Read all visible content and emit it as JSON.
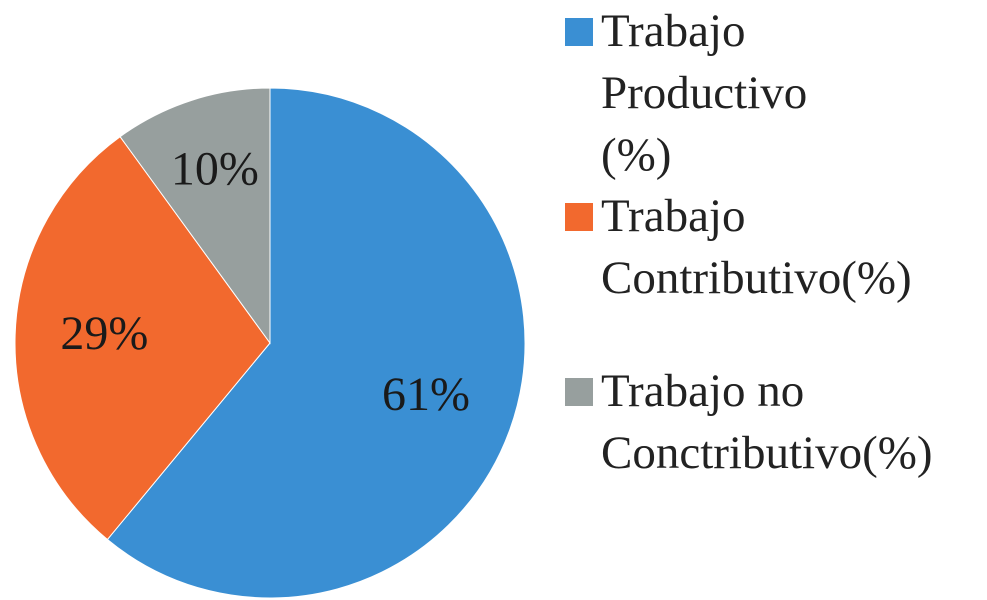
{
  "chart_data": {
    "type": "pie",
    "series": [
      {
        "name": "Trabajo Productivo (%)",
        "color": "#3a8fd3",
        "values": [
          61
        ],
        "value_labels": [
          "61%"
        ]
      },
      {
        "name": "Trabajo Contributivo(%)",
        "color": "#f2692e",
        "values": [
          29
        ],
        "value_labels": [
          "29%"
        ]
      },
      {
        "name": "Trabajo no Conctributivo(%)",
        "color": "#979f9e",
        "values": [
          10
        ],
        "value_labels": [
          "10%"
        ]
      }
    ],
    "legend": "right"
  }
}
